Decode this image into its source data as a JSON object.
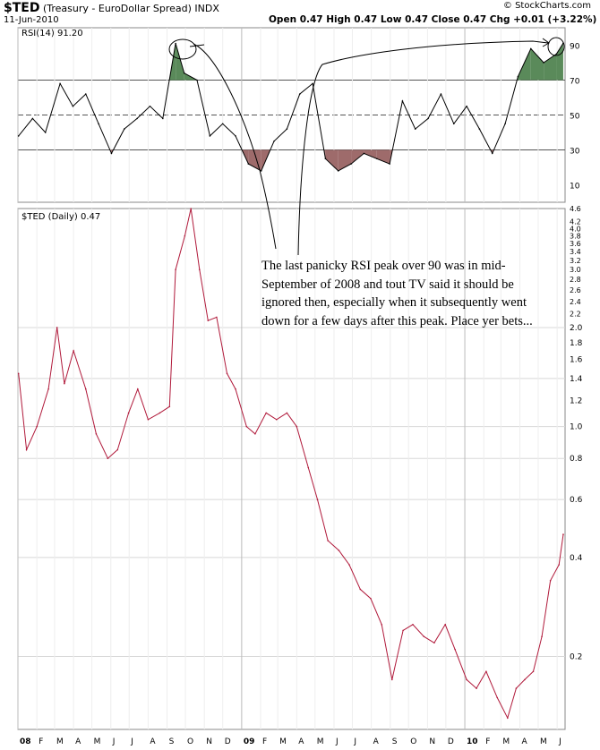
{
  "header": {
    "symbol": "$TED",
    "description": "(Treasury - EuroDollar Spread)",
    "exchange": "INDX",
    "date": "11-Jun-2010",
    "watermark": "© StockCharts.com",
    "quote": "Open 0.47  High 0.47  Low 0.47  Close 0.47  Chg +0.01 (+3.22%)",
    "quote_color": "#cc0000"
  },
  "annotation": "The last panicky RSI peak over 90 was in mid-September of 2008 and tout TV said it should be ignored then, especially when it subsequently went down for a few days after this peak. Place yer bets...",
  "colors": {
    "price_line": "#b0193a",
    "oversold_fill": "#9e6b6b",
    "overbought_fill": "#5a8a5a",
    "grid": "#d8d8d8"
  },
  "chart_data": [
    {
      "type": "line",
      "legend": "RSI(14) 91.20",
      "ylim": [
        0,
        100
      ],
      "yticks": [
        10,
        30,
        50,
        70,
        90
      ],
      "reference_lines": [
        30,
        50,
        70
      ],
      "x": [
        "2008-01-02",
        "2008-01-25",
        "2008-02-15",
        "2008-03-10",
        "2008-03-31",
        "2008-04-21",
        "2008-05-12",
        "2008-06-02",
        "2008-06-23",
        "2008-07-14",
        "2008-08-04",
        "2008-08-25",
        "2008-09-15",
        "2008-09-29",
        "2008-10-20",
        "2008-11-10",
        "2008-12-01",
        "2008-12-22",
        "2009-01-12",
        "2009-02-02",
        "2009-02-23",
        "2009-03-16",
        "2009-04-06",
        "2009-04-27",
        "2009-05-18",
        "2009-06-08",
        "2009-06-29",
        "2009-07-20",
        "2009-08-10",
        "2009-08-31",
        "2009-09-21",
        "2009-10-12",
        "2009-11-02",
        "2009-11-23",
        "2009-12-14",
        "2010-01-04",
        "2010-01-25",
        "2010-02-15",
        "2010-03-08",
        "2010-03-29",
        "2010-04-19",
        "2010-05-10",
        "2010-05-31",
        "2010-06-11"
      ],
      "values": [
        38,
        48,
        40,
        68,
        55,
        62,
        45,
        28,
        42,
        48,
        55,
        48,
        91,
        74,
        70,
        38,
        45,
        38,
        22,
        18,
        35,
        42,
        62,
        68,
        25,
        18,
        22,
        28,
        25,
        22,
        58,
        42,
        48,
        62,
        45,
        55,
        42,
        28,
        45,
        72,
        88,
        80,
        85,
        91.2
      ]
    },
    {
      "type": "line",
      "legend": "$TED (Daily) 0.47",
      "scale": "log",
      "ylim": [
        0.12,
        4.6
      ],
      "yticks": [
        0.2,
        0.4,
        0.6,
        0.8,
        1.0,
        1.2,
        1.4,
        1.6,
        1.8,
        2.0,
        2.2,
        2.4,
        2.6,
        2.8,
        3.0,
        3.2,
        3.4,
        3.6,
        3.8,
        4.0,
        4.2,
        4.6
      ],
      "x_month_labels": [
        "08",
        "F",
        "M",
        "A",
        "M",
        "J",
        "J",
        "A",
        "S",
        "O",
        "N",
        "D",
        "09",
        "F",
        "M",
        "A",
        "M",
        "J",
        "J",
        "A",
        "S",
        "O",
        "N",
        "D",
        "10",
        "F",
        "M",
        "A",
        "M",
        "J"
      ],
      "x": [
        "2008-01-02",
        "2008-01-15",
        "2008-02-01",
        "2008-02-20",
        "2008-03-05",
        "2008-03-17",
        "2008-04-01",
        "2008-04-21",
        "2008-05-08",
        "2008-05-27",
        "2008-06-12",
        "2008-06-30",
        "2008-07-15",
        "2008-08-01",
        "2008-08-20",
        "2008-09-05",
        "2008-09-15",
        "2008-09-30",
        "2008-10-10",
        "2008-10-24",
        "2008-11-07",
        "2008-11-21",
        "2008-12-08",
        "2008-12-22",
        "2009-01-09",
        "2009-01-23",
        "2009-02-10",
        "2009-02-27",
        "2009-03-16",
        "2009-04-01",
        "2009-04-20",
        "2009-05-05",
        "2009-05-22",
        "2009-06-09",
        "2009-06-26",
        "2009-07-14",
        "2009-07-31",
        "2009-08-18",
        "2009-09-04",
        "2009-09-22",
        "2009-10-08",
        "2009-10-26",
        "2009-11-12",
        "2009-11-30",
        "2009-12-16",
        "2010-01-04",
        "2010-01-20",
        "2010-02-05",
        "2010-02-23",
        "2010-03-12",
        "2010-03-26",
        "2010-04-09",
        "2010-04-23",
        "2010-05-07",
        "2010-05-21",
        "2010-06-04",
        "2010-06-11"
      ],
      "values": [
        1.45,
        0.85,
        1.0,
        1.3,
        2.0,
        1.35,
        1.7,
        1.3,
        0.95,
        0.8,
        0.85,
        1.1,
        1.3,
        1.05,
        1.1,
        1.15,
        3.0,
        3.8,
        4.6,
        3.0,
        2.1,
        2.15,
        1.45,
        1.3,
        1.0,
        0.95,
        1.1,
        1.05,
        1.1,
        1.0,
        0.75,
        0.6,
        0.45,
        0.42,
        0.38,
        0.32,
        0.3,
        0.25,
        0.17,
        0.24,
        0.25,
        0.23,
        0.22,
        0.25,
        0.21,
        0.17,
        0.16,
        0.18,
        0.15,
        0.13,
        0.16,
        0.17,
        0.18,
        0.23,
        0.34,
        0.38,
        0.47
      ]
    }
  ]
}
